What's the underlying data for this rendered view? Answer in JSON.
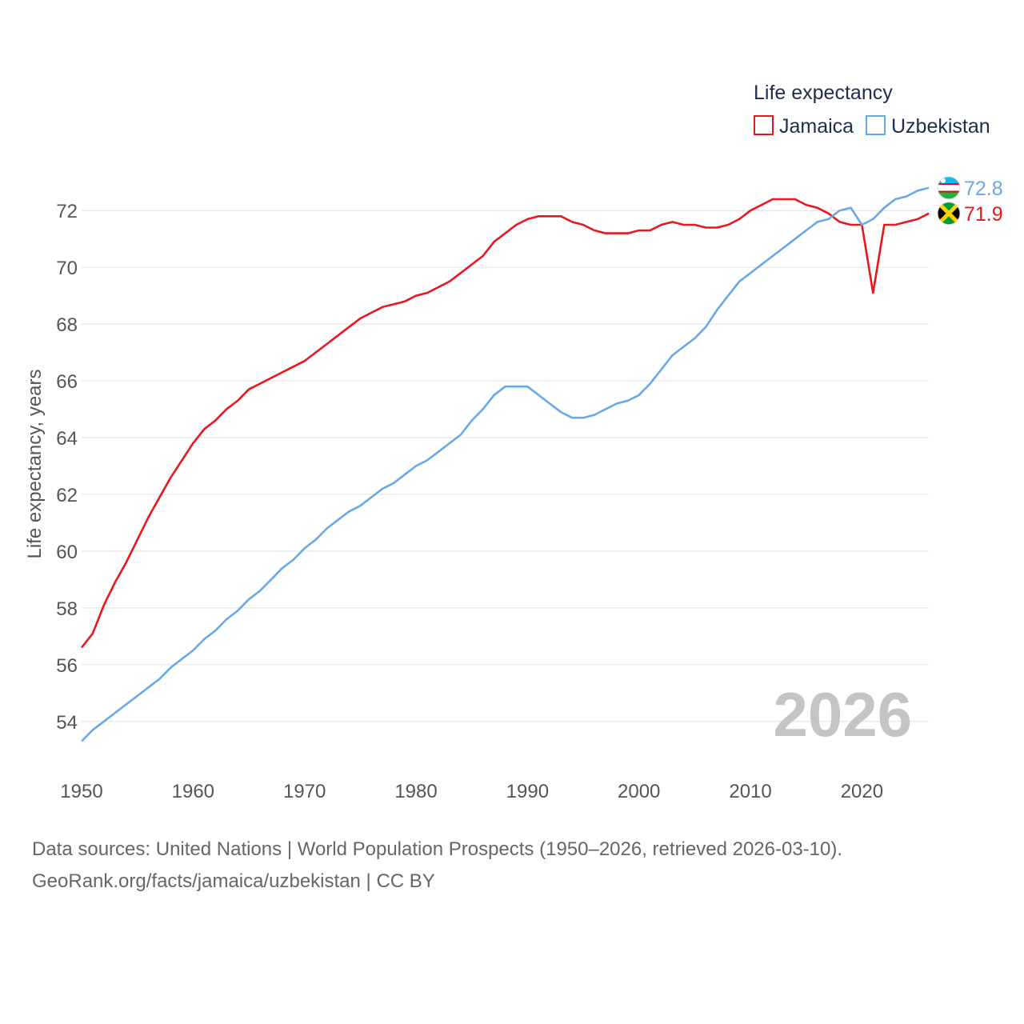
{
  "chart_data": {
    "type": "line",
    "title": "",
    "xlabel": "",
    "ylabel": "Life expectancy, years",
    "xlim": [
      1950,
      2026
    ],
    "ylim": [
      52.5,
      73.5
    ],
    "x_ticks": [
      1950,
      1960,
      1970,
      1980,
      1990,
      2000,
      2010,
      2020
    ],
    "y_ticks": [
      54,
      56,
      58,
      60,
      62,
      64,
      66,
      68,
      70,
      72
    ],
    "grid": true,
    "legend": {
      "title": "Life expectancy",
      "placement": "top-right"
    },
    "watermark_year": "2026",
    "x": [
      1950,
      1951,
      1952,
      1953,
      1954,
      1955,
      1956,
      1957,
      1958,
      1959,
      1960,
      1961,
      1962,
      1963,
      1964,
      1965,
      1966,
      1967,
      1968,
      1969,
      1970,
      1971,
      1972,
      1973,
      1974,
      1975,
      1976,
      1977,
      1978,
      1979,
      1980,
      1981,
      1982,
      1983,
      1984,
      1985,
      1986,
      1987,
      1988,
      1989,
      1990,
      1991,
      1992,
      1993,
      1994,
      1995,
      1996,
      1997,
      1998,
      1999,
      2000,
      2001,
      2002,
      2003,
      2004,
      2005,
      2006,
      2007,
      2008,
      2009,
      2010,
      2011,
      2012,
      2013,
      2014,
      2015,
      2016,
      2017,
      2018,
      2019,
      2020,
      2021,
      2022,
      2023,
      2024,
      2025,
      2026
    ],
    "series": [
      {
        "name": "Jamaica",
        "color": "#e8161d",
        "flag": "jamaica-flag",
        "end_label": "71.9",
        "values": [
          56.6,
          57.1,
          58.1,
          58.9,
          59.6,
          60.4,
          61.2,
          61.9,
          62.6,
          63.2,
          63.8,
          64.3,
          64.6,
          65.0,
          65.3,
          65.7,
          65.9,
          66.1,
          66.3,
          66.5,
          66.7,
          67.0,
          67.3,
          67.6,
          67.9,
          68.2,
          68.4,
          68.6,
          68.7,
          68.8,
          69.0,
          69.1,
          69.3,
          69.5,
          69.8,
          70.1,
          70.4,
          70.9,
          71.2,
          71.5,
          71.7,
          71.8,
          71.8,
          71.8,
          71.6,
          71.5,
          71.3,
          71.2,
          71.2,
          71.2,
          71.3,
          71.3,
          71.5,
          71.6,
          71.5,
          71.5,
          71.4,
          71.4,
          71.5,
          71.7,
          72.0,
          72.2,
          72.4,
          72.4,
          72.4,
          72.2,
          72.1,
          71.9,
          71.6,
          71.5,
          71.5,
          69.1,
          71.5,
          71.5,
          71.6,
          71.7,
          71.9
        ]
      },
      {
        "name": "Uzbekistan",
        "color": "#67a9e6",
        "flag": "uzbekistan-flag",
        "end_label": "72.8",
        "values": [
          53.3,
          53.7,
          54.0,
          54.3,
          54.6,
          54.9,
          55.2,
          55.5,
          55.9,
          56.2,
          56.5,
          56.9,
          57.2,
          57.6,
          57.9,
          58.3,
          58.6,
          59.0,
          59.4,
          59.7,
          60.1,
          60.4,
          60.8,
          61.1,
          61.4,
          61.6,
          61.9,
          62.2,
          62.4,
          62.7,
          63.0,
          63.2,
          63.5,
          63.8,
          64.1,
          64.6,
          65.0,
          65.5,
          65.8,
          65.8,
          65.8,
          65.5,
          65.2,
          64.9,
          64.7,
          64.7,
          64.8,
          65.0,
          65.2,
          65.3,
          65.5,
          65.9,
          66.4,
          66.9,
          67.2,
          67.5,
          67.9,
          68.5,
          69.0,
          69.5,
          69.8,
          70.1,
          70.4,
          70.7,
          71.0,
          71.3,
          71.6,
          71.7,
          72.0,
          72.1,
          71.5,
          71.7,
          72.1,
          72.4,
          72.5,
          72.7,
          72.8
        ]
      }
    ]
  },
  "footer": {
    "source_line": "Data sources: United Nations | World Population Prospects (1950–2026, retrieved 2026-03-10).",
    "link_line": "GeoRank.org/facts/jamaica/uzbekistan | CC BY"
  }
}
